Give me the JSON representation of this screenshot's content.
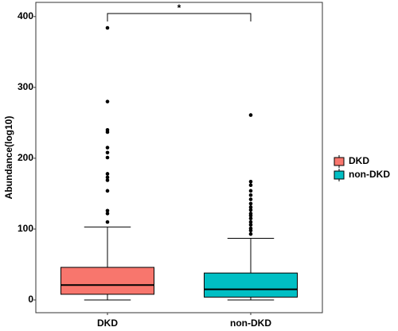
{
  "chart_data": {
    "type": "box",
    "y_label": "Abundance(log10)",
    "categories": [
      "DKD",
      "non-DKD"
    ],
    "boxes": [
      {
        "name": "DKD",
        "color": "#F8766D",
        "min": 0,
        "q1": 8,
        "median": 21,
        "q3": 46,
        "max": 103,
        "outliers": [
          384,
          280,
          240,
          237,
          215,
          208,
          201,
          178,
          173,
          169,
          154,
          126,
          122,
          110
        ]
      },
      {
        "name": "non-DKD",
        "color": "#00BFC4",
        "min": 0,
        "q1": 4,
        "median": 15,
        "q3": 38,
        "max": 87,
        "outliers": [
          261,
          167,
          162,
          154,
          148,
          142,
          136,
          131,
          127,
          122,
          119,
          115,
          110,
          106,
          101,
          98,
          93
        ]
      }
    ],
    "annotation": "*",
    "ylim": [
      -18,
      420
    ],
    "yticks": [
      0,
      100,
      200,
      300,
      400
    ],
    "grid": false
  }
}
